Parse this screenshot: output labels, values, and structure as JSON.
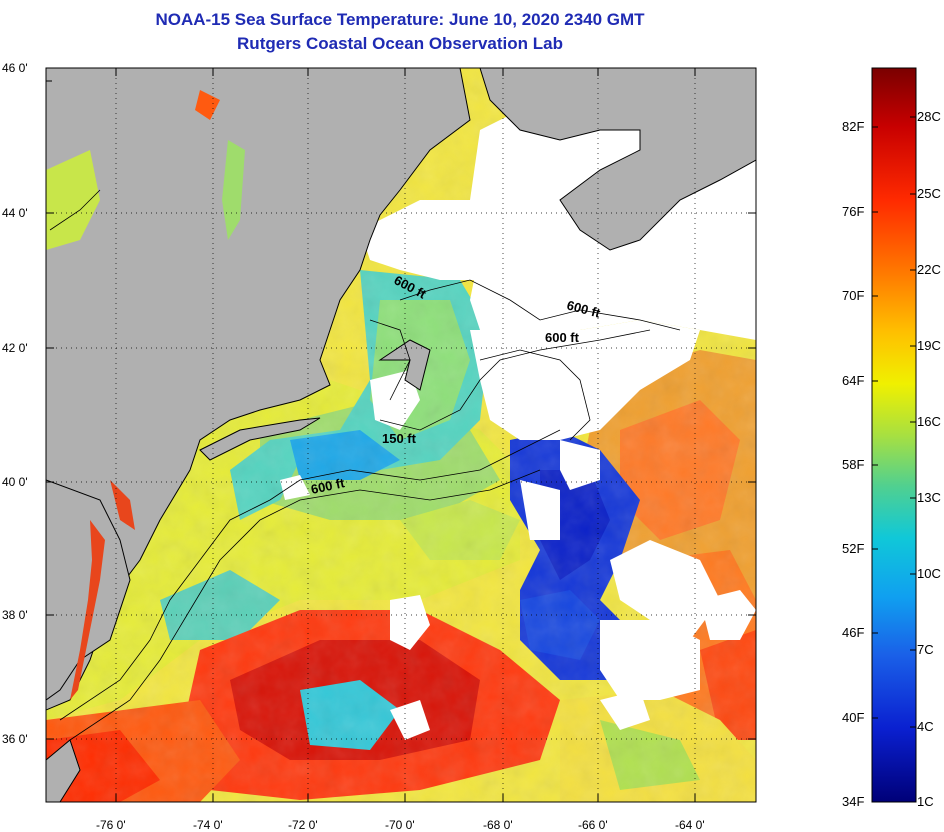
{
  "title": {
    "line1": "NOAA-15 Sea Surface Temperature:  June 10, 2020 2340 GMT",
    "line2": "Rutgers Coastal Ocean Observation Lab"
  },
  "map": {
    "latitude_labels": [
      "46 0'",
      "44 0'",
      "42 0'",
      "40 0'",
      "38 0'",
      "36 0'"
    ],
    "longitude_labels": [
      "-76 0'",
      "-74 0'",
      "-72 0'",
      "-70 0'",
      "-68 0'",
      "-66 0'",
      "-64 0'"
    ],
    "isobath_labels": [
      "600 ft",
      "600 ft",
      "600 ft",
      "150 ft",
      "600 ft"
    ],
    "colors": {
      "land": "#b0b0b0",
      "cloud_no_data": "#ffffff",
      "coastline": "#000000"
    }
  },
  "colorbar": {
    "fahrenheit_labels": [
      "82F",
      "76F",
      "70F",
      "64F",
      "58F",
      "52F",
      "46F",
      "40F",
      "34F"
    ],
    "celsius_labels": [
      "28C",
      "25C",
      "22C",
      "19C",
      "16C",
      "13C",
      "10C",
      "7C",
      "4C",
      "1C"
    ],
    "gradient": [
      "#7a0000",
      "#d40000",
      "#ff3a00",
      "#ff8a00",
      "#ffd200",
      "#e8f000",
      "#8fe04a",
      "#2fd0a8",
      "#00b8e8",
      "#1e7af0",
      "#0a28e0",
      "#00007a"
    ]
  }
}
